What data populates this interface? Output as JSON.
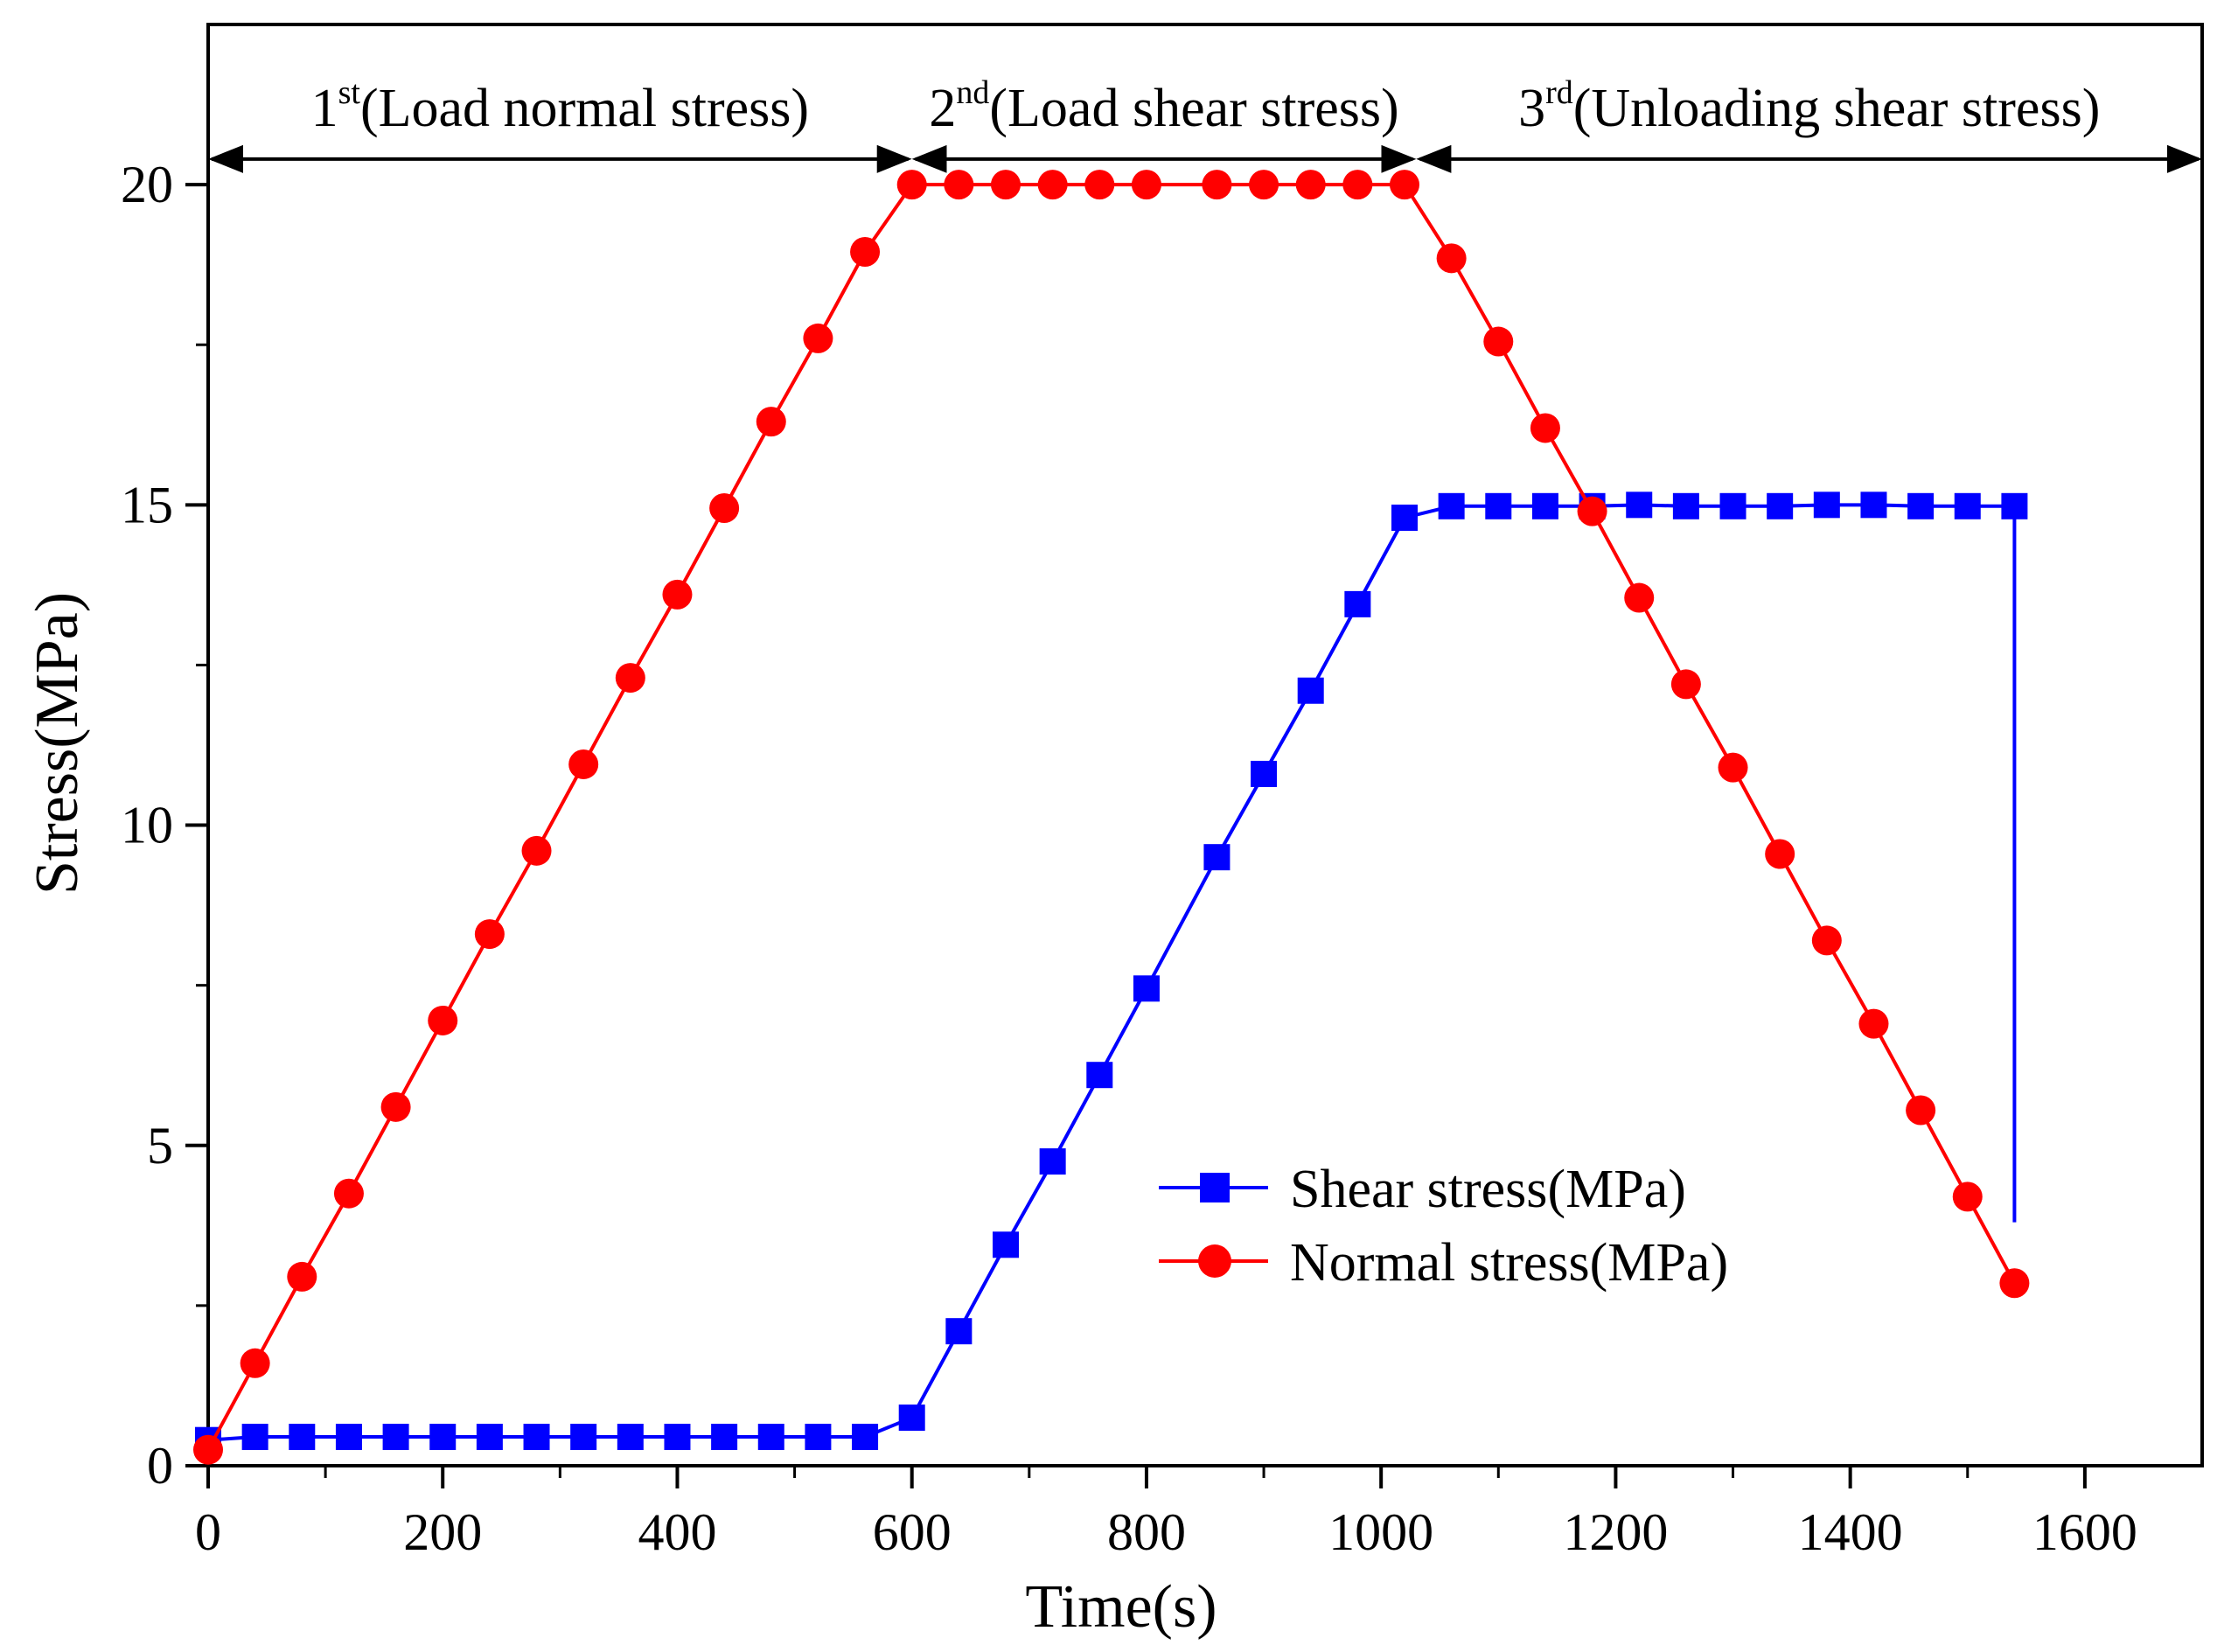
{
  "chart_data": {
    "type": "line",
    "xlabel": "Time(s)",
    "ylabel": "Stress(MPa)",
    "xlim": [
      0,
      1700
    ],
    "ylim": [
      0,
      22.5
    ],
    "xticks": [
      "0",
      "200",
      "400",
      "600",
      "800",
      "1000",
      "1200",
      "1400",
      "1600"
    ],
    "yticks": [
      "0",
      "5",
      "10",
      "15",
      "20"
    ],
    "grid": false,
    "legend_position": "center-right",
    "series": [
      {
        "name": "Shear stress(MPa)",
        "color": "#0000ff",
        "marker": "square",
        "x": [
          0,
          40,
          80,
          120,
          160,
          200,
          240,
          280,
          320,
          360,
          400,
          440,
          480,
          520,
          560,
          600,
          640,
          680,
          720,
          760,
          800,
          860,
          900,
          940,
          980,
          1020,
          1060,
          1100,
          1140,
          1180,
          1220,
          1260,
          1300,
          1340,
          1380,
          1420,
          1460,
          1500,
          1540
        ],
        "y": [
          0.4,
          0.45,
          0.45,
          0.45,
          0.45,
          0.45,
          0.45,
          0.45,
          0.45,
          0.45,
          0.45,
          0.45,
          0.45,
          0.45,
          0.45,
          0.75,
          2.1,
          3.45,
          4.75,
          6.1,
          7.45,
          9.5,
          10.8,
          12.1,
          13.45,
          14.8,
          14.98,
          14.98,
          14.98,
          14.98,
          15.0,
          14.98,
          14.98,
          14.98,
          15.0,
          15.0,
          14.98,
          14.98,
          14.98
        ],
        "drop_to": 3.8
      },
      {
        "name": "Normal stress(MPa)",
        "color": "#ff0000",
        "marker": "circle",
        "x": [
          0,
          40,
          80,
          120,
          160,
          200,
          240,
          280,
          320,
          360,
          400,
          440,
          480,
          520,
          560,
          600,
          640,
          680,
          720,
          760,
          800,
          860,
          900,
          940,
          980,
          1020,
          1060,
          1100,
          1140,
          1180,
          1220,
          1260,
          1300,
          1340,
          1380,
          1420,
          1460,
          1500,
          1540
        ],
        "y": [
          0.25,
          1.6,
          2.95,
          4.25,
          5.6,
          6.95,
          8.3,
          9.6,
          10.95,
          12.3,
          13.6,
          14.95,
          16.3,
          17.6,
          18.95,
          20.0,
          20.0,
          20.0,
          20.0,
          20.0,
          20.0,
          20.0,
          20.0,
          20.0,
          20.0,
          20.0,
          18.85,
          17.55,
          16.2,
          14.9,
          13.55,
          12.2,
          10.9,
          9.55,
          8.2,
          6.9,
          5.55,
          4.2,
          2.85
        ]
      }
    ],
    "annotations": {
      "level": 20.4,
      "phases": [
        {
          "num": "1",
          "sup": "st",
          "text": "(Load normal stress)",
          "start": 0,
          "end": 600
        },
        {
          "num": "2",
          "sup": "nd",
          "text": "(Load shear stress)",
          "start": 600,
          "end": 1030
        },
        {
          "num": "3",
          "sup": "rd",
          "text": "(Unloading shear stress)",
          "start": 1030,
          "end": 1700
        }
      ]
    }
  }
}
